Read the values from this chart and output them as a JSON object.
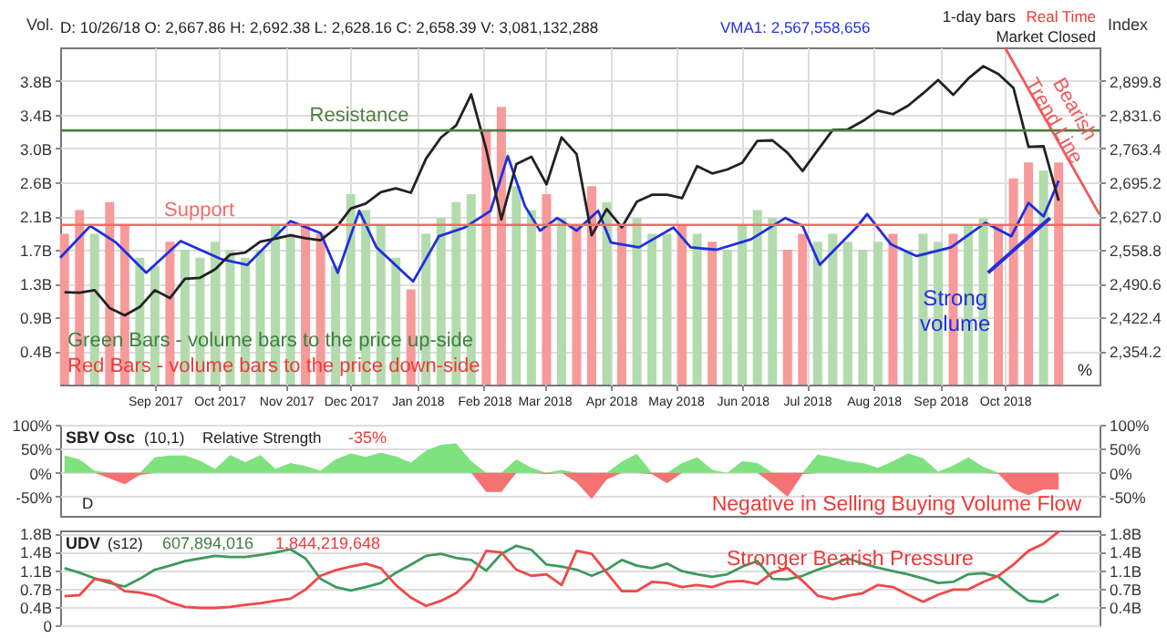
{
  "chart_data": [
    {
      "type": "bar",
      "xlim": [
        "2017-07-19",
        "2018-11-14"
      ],
      "xticks": [
        {
          "value": "2017-09",
          "label": "Sep 2017"
        },
        {
          "value": "2017-10",
          "label": "Oct 2017"
        },
        {
          "value": "2017-11",
          "label": "Nov 2017"
        },
        {
          "value": "2017-12",
          "label": "Dec 2017"
        },
        {
          "value": "2018-01",
          "label": "Jan 2018"
        },
        {
          "value": "2018-02",
          "label": "Feb 2018"
        },
        {
          "value": "2018-03",
          "label": "Mar 2018"
        },
        {
          "value": "2018-04",
          "label": "Apr 2018"
        },
        {
          "value": "2018-05",
          "label": "May 2018"
        },
        {
          "value": "2018-06",
          "label": "Jun 2018"
        },
        {
          "value": "2018-07",
          "label": "Jul 2018"
        },
        {
          "value": "2018-08",
          "label": "Aug 2018"
        },
        {
          "value": "2018-09",
          "label": "Sep 2018"
        },
        {
          "value": "2018-10",
          "label": "Oct 2018"
        }
      ],
      "x": [
        "2017-07-21",
        "2017-07-28",
        "2017-08-04",
        "2017-08-11",
        "2017-08-18",
        "2017-08-25",
        "2017-09-01",
        "2017-09-08",
        "2017-09-15",
        "2017-09-22",
        "2017-09-29",
        "2017-10-06",
        "2017-10-13",
        "2017-10-20",
        "2017-10-27",
        "2017-11-03",
        "2017-11-10",
        "2017-11-17",
        "2017-11-24",
        "2017-12-01",
        "2017-12-08",
        "2017-12-15",
        "2017-12-22",
        "2017-12-29",
        "2018-01-05",
        "2018-01-12",
        "2018-01-19",
        "2018-01-26",
        "2018-02-02",
        "2018-02-09",
        "2018-02-16",
        "2018-02-23",
        "2018-03-02",
        "2018-03-09",
        "2018-03-16",
        "2018-03-23",
        "2018-03-30",
        "2018-04-06",
        "2018-04-13",
        "2018-04-20",
        "2018-04-27",
        "2018-05-04",
        "2018-05-11",
        "2018-05-18",
        "2018-05-25",
        "2018-06-01",
        "2018-06-08",
        "2018-06-15",
        "2018-06-22",
        "2018-06-29",
        "2018-07-06",
        "2018-07-13",
        "2018-07-20",
        "2018-07-27",
        "2018-08-03",
        "2018-08-10",
        "2018-08-17",
        "2018-08-24",
        "2018-08-31",
        "2018-09-07",
        "2018-09-14",
        "2018-09-21",
        "2018-09-28",
        "2018-10-05",
        "2018-10-12",
        "2018-10-19",
        "2018-10-26"
      ],
      "ylabel": "Vol.",
      "y2label": "Index",
      "ylim": [
        0,
        4.25
      ],
      "yticks": [
        {
          "value": 0.425,
          "label": "0.4B"
        },
        {
          "value": 0.85,
          "label": "0.9B"
        },
        {
          "value": 1.275,
          "label": "1.3B"
        },
        {
          "value": 1.7,
          "label": "1.7B"
        },
        {
          "value": 2.125,
          "label": "2.1B"
        },
        {
          "value": 2.55,
          "label": "2.6B"
        },
        {
          "value": 2.975,
          "label": "3.0B"
        },
        {
          "value": 3.4,
          "label": "3.4B"
        },
        {
          "value": 3.825,
          "label": "3.8B"
        }
      ],
      "y2lim": [
        2286.0,
        2968.0
      ],
      "y2ticks": [
        {
          "value": 2354.2,
          "label": "2,354.2"
        },
        {
          "value": 2422.4,
          "label": "2,422.4"
        },
        {
          "value": 2490.6,
          "label": "2,490.6"
        },
        {
          "value": 2558.8,
          "label": "2,558.8"
        },
        {
          "value": 2627.0,
          "label": "2,627.0"
        },
        {
          "value": 2695.2,
          "label": "2,695.2"
        },
        {
          "value": 2763.4,
          "label": "2,763.4"
        },
        {
          "value": 2831.6,
          "label": "2,831.6"
        },
        {
          "value": 2899.8,
          "label": "2,899.8"
        }
      ],
      "grid": true,
      "series": [
        {
          "type": "bar",
          "values": [
            1.9,
            2.2,
            1.9,
            2.3,
            2.0,
            1.6,
            1.5,
            1.8,
            1.7,
            1.6,
            1.8,
            1.7,
            1.6,
            1.7,
            2.0,
            1.9,
            2.0,
            1.9,
            1.5,
            2.4,
            2.2,
            2.0,
            1.6,
            1.2,
            1.9,
            2.1,
            2.3,
            2.4,
            3.2,
            3.5,
            2.5,
            2.2,
            2.4,
            2.1,
            2.0,
            2.5,
            2.3,
            2.0,
            2.1,
            1.9,
            1.9,
            2.0,
            1.9,
            1.8,
            1.7,
            2.0,
            2.2,
            2.1,
            1.7,
            1.9,
            1.8,
            1.9,
            1.8,
            1.7,
            1.8,
            1.9,
            1.7,
            1.9,
            1.8,
            1.9,
            2.0,
            2.1,
            2.0,
            2.6,
            2.8,
            2.7,
            2.8
          ],
          "colors": [
            "#f79a9a",
            "#f79a9a",
            "#b3dbae",
            "#f79a9a",
            "#f79a9a",
            "#b3dbae",
            "#b3dbae",
            "#f79a9a",
            "#b3dbae",
            "#b3dbae",
            "#b3dbae",
            "#b3dbae",
            "#b3dbae",
            "#b3dbae",
            "#b3dbae",
            "#b3dbae",
            "#f79a9a",
            "#f79a9a",
            "#b3dbae",
            "#b3dbae",
            "#b3dbae",
            "#b3dbae",
            "#b3dbae",
            "#f79a9a",
            "#b3dbae",
            "#b3dbae",
            "#b3dbae",
            "#b3dbae",
            "#f79a9a",
            "#f79a9a",
            "#b3dbae",
            "#b3dbae",
            "#f79a9a",
            "#b3dbae",
            "#f79a9a",
            "#f79a9a",
            "#b3dbae",
            "#f79a9a",
            "#b3dbae",
            "#b3dbae",
            "#b3dbae",
            "#f79a9a",
            "#b3dbae",
            "#f79a9a",
            "#b3dbae",
            "#b3dbae",
            "#b3dbae",
            "#b3dbae",
            "#f79a9a",
            "#f79a9a",
            "#b3dbae",
            "#b3dbae",
            "#b3dbae",
            "#b3dbae",
            "#b3dbae",
            "#f79a9a",
            "#b3dbae",
            "#b3dbae",
            "#b3dbae",
            "#f79a9a",
            "#b3dbae",
            "#b3dbae",
            "#f79a9a",
            "#f79a9a",
            "#f79a9a",
            "#b3dbae",
            "#f79a9a"
          ]
        },
        {
          "type": "line",
          "color": "#1f2fe0",
          "x": [
            "2017-07-19",
            "2017-08-02",
            "2017-08-14",
            "2017-08-28",
            "2017-09-13",
            "2017-10-02",
            "2017-10-14",
            "2017-11-03",
            "2017-11-17",
            "2017-11-25",
            "2017-12-05",
            "2017-12-13",
            "2017-12-30",
            "2018-01-11",
            "2018-01-23",
            "2018-02-04",
            "2018-02-12",
            "2018-02-20",
            "2018-02-27",
            "2018-03-07",
            "2018-03-16",
            "2018-03-26",
            "2018-04-01",
            "2018-04-14",
            "2018-04-30",
            "2018-05-08",
            "2018-05-20",
            "2018-06-05",
            "2018-06-21",
            "2018-06-29",
            "2018-07-07",
            "2018-07-24",
            "2018-07-29",
            "2018-08-09",
            "2018-08-21",
            "2018-09-06",
            "2018-09-22",
            "2018-10-04",
            "2018-10-12",
            "2018-10-19",
            "2018-10-26"
          ],
          "values": [
            1.6,
            2.0,
            1.79,
            1.41,
            1.81,
            1.58,
            1.51,
            2.06,
            1.91,
            1.41,
            2.19,
            1.73,
            1.3,
            1.87,
            1.98,
            2.19,
            2.88,
            2.25,
            1.94,
            2.1,
            1.94,
            2.19,
            1.79,
            1.73,
            1.98,
            1.73,
            1.7,
            1.83,
            2.1,
            2.0,
            1.51,
            1.98,
            2.15,
            1.77,
            1.62,
            1.73,
            2.04,
            1.87,
            2.29,
            2.12,
            2.57
          ]
        },
        {
          "type": "line",
          "axis": "y2",
          "color": "#222222",
          "values": [
            2473,
            2472,
            2477,
            2441,
            2426,
            2443,
            2477,
            2461,
            2500,
            2502,
            2519,
            2549,
            2553,
            2575,
            2581,
            2588,
            2582,
            2578,
            2602,
            2642,
            2652,
            2675,
            2683,
            2674,
            2743,
            2786,
            2810,
            2873,
            2762,
            2620,
            2732,
            2747,
            2691,
            2786,
            2752,
            2588,
            2641,
            2604,
            2656,
            2670,
            2670,
            2663,
            2728,
            2713,
            2721,
            2735,
            2779,
            2780,
            2755,
            2718,
            2760,
            2801,
            2802,
            2819,
            2840,
            2833,
            2850,
            2875,
            2902,
            2872,
            2905,
            2930,
            2914,
            2886,
            2767,
            2768,
            2658
          ]
        },
        {
          "type": "line",
          "axis": "y2",
          "color": "#f05a5a",
          "x": [
            "2018-10-01",
            "2018-11-14"
          ],
          "values": [
            2968.0,
            2630
          ]
        }
      ],
      "ref_lines": [
        {
          "axis": "y2",
          "value": 2800,
          "label": "Resistance",
          "color": "#4f7f3f"
        },
        {
          "axis": "y2",
          "value": 2609,
          "label": "Support",
          "color": "#f26a6a"
        }
      ],
      "annotations": [
        "D: 10/26/18  O: 2,667.86  H: 2,692.38  L: 2,628.16  C: 2,658.39  V: 3,081,132,288",
        "VMA1: 2,567,558,656",
        "1-day bars",
        "Real Time",
        "Market Closed",
        "Green Bars - volume bars to the price up-side",
        "Red Bars - volume bars to the price down-side",
        "Bearish Trend Line",
        {
          "text": "Strong volume",
          "x": "2018-10-22",
          "y": 2.1
        },
        "%"
      ]
    },
    {
      "type": "area",
      "title": "SBV Osc",
      "categories": [
        null,
        null,
        null,
        null,
        null,
        null,
        null,
        null,
        null,
        null,
        null,
        null,
        null,
        null,
        null,
        null,
        null,
        null,
        null,
        null,
        null,
        null,
        null,
        null,
        null,
        null,
        null,
        null,
        null,
        null,
        null,
        null,
        null,
        null,
        null,
        null,
        null,
        null,
        null,
        null,
        null,
        null,
        null,
        null,
        null,
        null,
        null,
        null,
        null,
        null,
        null,
        null,
        null,
        null,
        null,
        null,
        null,
        null,
        null,
        null,
        null,
        null,
        null,
        null,
        null,
        null,
        null
      ],
      "ylim": [
        -90,
        100
      ],
      "yticks": [
        {
          "value": 100,
          "label": "100%"
        },
        {
          "value": 50,
          "label": "50%"
        },
        {
          "value": 0,
          "label": "0%"
        },
        {
          "value": -50,
          "label": "-50%"
        }
      ],
      "y2lim": [
        -90,
        100
      ],
      "y2ticks": [
        {
          "value": 100,
          "label": "100%"
        },
        {
          "value": 50,
          "label": "50%"
        },
        {
          "value": 0,
          "label": "0%"
        },
        {
          "value": -50,
          "label": "-50%"
        }
      ],
      "grid": "y",
      "tick_labels": "y",
      "series": [
        {
          "color": "#7ee37e",
          "values": [
            36,
            28,
            4,
            0,
            0,
            0,
            32,
            36,
            36,
            25,
            8,
            37,
            22,
            37,
            8,
            20,
            14,
            4,
            28,
            40,
            33,
            42,
            34,
            21,
            46,
            58,
            61,
            24,
            0,
            0,
            28,
            10,
            0,
            6,
            0,
            0,
            0,
            23,
            39,
            0,
            0,
            20,
            32,
            6,
            0,
            24,
            20,
            0,
            0,
            0,
            38,
            32,
            24,
            20,
            10,
            24,
            40,
            30,
            2,
            15,
            32,
            12,
            0,
            0,
            0,
            0,
            0
          ]
        },
        {
          "color": "#f47272",
          "values": [
            0,
            0,
            0,
            -12,
            -24,
            -5,
            0,
            0,
            0,
            0,
            0,
            0,
            0,
            0,
            0,
            0,
            0,
            0,
            0,
            0,
            0,
            0,
            0,
            0,
            0,
            0,
            0,
            0,
            -40,
            -40,
            0,
            0,
            -3,
            0,
            -20,
            -55,
            -14,
            0,
            0,
            -3,
            -22,
            0,
            0,
            0,
            0,
            0,
            0,
            -24,
            -50,
            -3,
            0,
            0,
            0,
            0,
            0,
            0,
            0,
            0,
            0,
            0,
            0,
            0,
            -2,
            -35,
            -47,
            -35,
            -35
          ]
        }
      ],
      "annotations": [
        "(10,1)",
        "Relative Strength",
        "-35%",
        "D",
        "Negative in Selling Buying Volume Flow"
      ]
    },
    {
      "type": "line",
      "title": "UDV",
      "categories": [
        null,
        null,
        null,
        null,
        null,
        null,
        null,
        null,
        null,
        null,
        null,
        null,
        null,
        null,
        null,
        null,
        null,
        null,
        null,
        null,
        null,
        null,
        null,
        null,
        null,
        null,
        null,
        null,
        null,
        null,
        null,
        null,
        null,
        null,
        null,
        null,
        null,
        null,
        null,
        null,
        null,
        null,
        null,
        null,
        null,
        null,
        null,
        null,
        null,
        null,
        null,
        null,
        null,
        null,
        null,
        null,
        null,
        null,
        null,
        null,
        null,
        null,
        null,
        null,
        null,
        null,
        null
      ],
      "ylim": [
        0,
        1.86
      ],
      "yticks": [
        {
          "value": 0,
          "label": "0"
        },
        {
          "value": 0.36,
          "label": "0.4B"
        },
        {
          "value": 0.72,
          "label": "0.7B"
        },
        {
          "value": 1.08,
          "label": "1.1B"
        },
        {
          "value": 1.44,
          "label": "1.4B"
        },
        {
          "value": 1.8,
          "label": "1.8B"
        }
      ],
      "y2lim": [
        0,
        1.86
      ],
      "y2ticks": [
        {
          "value": 0.36,
          "label": "0.4B"
        },
        {
          "value": 0.72,
          "label": "0.7B"
        },
        {
          "value": 1.08,
          "label": "1.1B"
        },
        {
          "value": 1.44,
          "label": "1.4B"
        },
        {
          "value": 1.8,
          "label": "1.8B"
        }
      ],
      "grid": "y",
      "tick_labels": "y",
      "series": [
        {
          "color": "#3d9a5c",
          "values": [
            1.12,
            1.03,
            0.92,
            0.83,
            0.76,
            0.91,
            1.09,
            1.17,
            1.26,
            1.31,
            1.36,
            1.34,
            1.34,
            1.38,
            1.43,
            1.49,
            1.31,
            0.91,
            0.75,
            0.68,
            0.75,
            0.83,
            1.03,
            1.19,
            1.36,
            1.4,
            1.32,
            1.28,
            1.07,
            1.4,
            1.56,
            1.48,
            1.19,
            1.15,
            1.09,
            0.97,
            1.09,
            1.28,
            1.17,
            1.12,
            1.21,
            1.06,
            1.0,
            0.95,
            1.0,
            1.15,
            1.26,
            0.91,
            0.9,
            0.97,
            1.09,
            1.19,
            1.31,
            1.21,
            1.13,
            1.06,
            1.0,
            0.92,
            0.83,
            0.85,
            1.0,
            1.02,
            0.95,
            0.7,
            0.48,
            0.46,
            0.61
          ]
        },
        {
          "color": "#f04848",
          "values": [
            0.57,
            0.59,
            0.91,
            0.87,
            0.67,
            0.64,
            0.58,
            0.45,
            0.36,
            0.34,
            0.34,
            0.36,
            0.4,
            0.43,
            0.48,
            0.52,
            0.7,
            0.97,
            1.08,
            1.15,
            1.21,
            1.12,
            0.79,
            0.54,
            0.38,
            0.48,
            0.63,
            0.91,
            1.46,
            1.43,
            1.09,
            0.97,
            1.0,
            0.79,
            1.46,
            1.4,
            1.03,
            0.67,
            0.67,
            0.85,
            0.83,
            0.75,
            0.79,
            0.75,
            0.85,
            0.87,
            0.81,
            1.03,
            1.12,
            0.87,
            0.58,
            0.51,
            0.58,
            0.63,
            0.79,
            0.75,
            0.6,
            0.46,
            0.6,
            0.7,
            0.7,
            0.85,
            0.97,
            1.19,
            1.46,
            1.6,
            1.84
          ]
        }
      ],
      "annotations": [
        "(s12)",
        "607,894,016",
        "1,844,219,648",
        "Stronger Bearish Pressure"
      ]
    }
  ]
}
